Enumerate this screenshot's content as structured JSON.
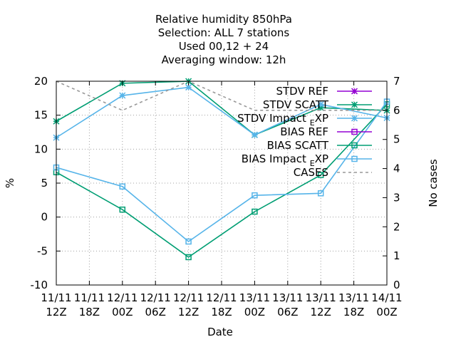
{
  "chart_data": {
    "type": "line",
    "title_lines": [
      "Relative humidity 850hPa",
      "Selection: ALL      7 stations",
      "Used  00,12  + 24",
      "Averaging window: 12h"
    ],
    "xlabel": "Date",
    "ylabel": "%",
    "y2label": "No cases",
    "ylim": [
      -10,
      20
    ],
    "y2lim": [
      0,
      7
    ],
    "yticks": [
      -10,
      -5,
      0,
      5,
      10,
      15,
      20
    ],
    "y2ticks": [
      0,
      1,
      2,
      3,
      4,
      5,
      6,
      7
    ],
    "grid": true,
    "legend_position": "top-right",
    "x_ticks": [
      {
        "top": "11/11",
        "bottom": "12Z"
      },
      {
        "top": "11/11",
        "bottom": "18Z"
      },
      {
        "top": "12/11",
        "bottom": "00Z"
      },
      {
        "top": "12/11",
        "bottom": "06Z"
      },
      {
        "top": "12/11",
        "bottom": "12Z"
      },
      {
        "top": "12/11",
        "bottom": "18Z"
      },
      {
        "top": "13/11",
        "bottom": "00Z"
      },
      {
        "top": "13/11",
        "bottom": "06Z"
      },
      {
        "top": "13/11",
        "bottom": "12Z"
      },
      {
        "top": "13/11",
        "bottom": "18Z"
      },
      {
        "top": "14/11",
        "bottom": "00Z"
      }
    ],
    "x_hours": [
      0,
      12,
      24,
      36,
      48,
      60
    ],
    "series": [
      {
        "name": "STDV REF",
        "name_sub": "",
        "color": "#9400d3",
        "marker": "star",
        "dash": "",
        "axis": "y",
        "values": []
      },
      {
        "name": "STDV SCATT",
        "name_sub": "",
        "color": "#009e73",
        "marker": "star",
        "dash": "",
        "axis": "y",
        "values": [
          14.1,
          19.7,
          20.0,
          12.1,
          16.1,
          15.7
        ]
      },
      {
        "name": "STDV Impact",
        "name_sub": "E",
        "name_end": "XP",
        "color": "#56b4e9",
        "marker": "star",
        "dash": "",
        "axis": "y",
        "values": [
          11.7,
          17.9,
          19.1,
          12.1,
          16.6,
          14.6
        ]
      },
      {
        "name": "BIAS REF",
        "name_sub": "",
        "color": "#9400d3",
        "marker": "square",
        "dash": "",
        "axis": "y",
        "values": []
      },
      {
        "name": "BIAS SCATT",
        "name_sub": "",
        "color": "#009e73",
        "marker": "square",
        "dash": "",
        "axis": "y",
        "values": [
          6.6,
          1.1,
          -5.9,
          0.8,
          6.2,
          16.6
        ]
      },
      {
        "name": "BIAS Impact",
        "name_sub": "E",
        "name_end": "XP",
        "color": "#56b4e9",
        "marker": "square",
        "dash": "",
        "axis": "y",
        "values": [
          7.3,
          4.5,
          -3.6,
          3.2,
          3.5,
          17.0
        ]
      },
      {
        "name": "CASES",
        "name_sub": "",
        "color": "#999999",
        "marker": "none",
        "dash": "4,4",
        "axis": "y2",
        "values": [
          7,
          6,
          7,
          6,
          6,
          6
        ]
      }
    ]
  }
}
